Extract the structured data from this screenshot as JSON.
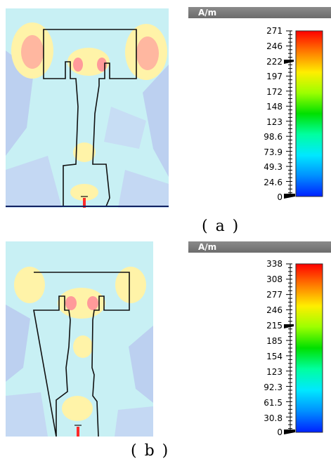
{
  "panels": [
    {
      "caption": "( a )",
      "legend": {
        "unit": "A/m",
        "ticks": [
          "271",
          "246",
          "222",
          "197",
          "172",
          "148",
          "123",
          "98.6",
          "73.9",
          "49.3",
          "24.6",
          "0"
        ],
        "max": 271,
        "marker_value": 222
      }
    },
    {
      "caption": "( b )",
      "legend": {
        "unit": "A/m",
        "ticks": [
          "338",
          "308",
          "277",
          "246",
          "215",
          "185",
          "154",
          "123",
          "92.3",
          "61.5",
          "30.8",
          "0"
        ],
        "max": 338,
        "marker_value": 215
      }
    }
  ],
  "colors": {
    "field_background": "#c8f0f4",
    "field_low": "#b8c8f0",
    "field_mid": "#fff0a0",
    "field_high": "#ff9a9a",
    "outline": "#101010",
    "legend_header": "#787878"
  },
  "colormap": [
    "#ff0000",
    "#ff7a00",
    "#ffee00",
    "#9cff00",
    "#00e000",
    "#00ffa0",
    "#00e8ff",
    "#0090ff",
    "#0020ff"
  ]
}
